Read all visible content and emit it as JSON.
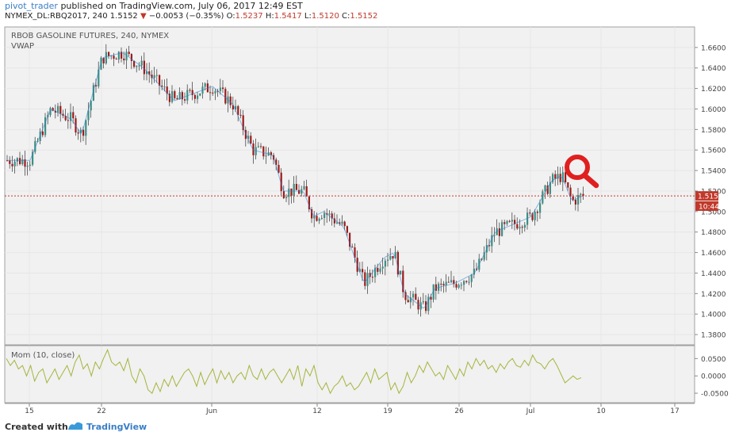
{
  "header": {
    "publisher": "pivot_trader",
    "published_text": "published on TradingView.com, July 06, 2017 12:49 EST",
    "symbol": "NYMEX_DL:RBQ2017, 240",
    "last": "1.5152",
    "change": "−0.0053 (−0.35%)",
    "o_label": "O:",
    "o_val": "1.5237",
    "h_label": "H:",
    "h_val": "1.5417",
    "l_label": "L:",
    "l_val": "1.5120",
    "c_label": "C:",
    "c_val": "1.5152"
  },
  "footer": {
    "created_with": "Created with",
    "brand": "TradingView"
  },
  "chart_data": {
    "type": "candlestick",
    "title": "RBOB GASOLINE FUTURES, 240, NYMEX",
    "indicator_label": "VWAP",
    "ylim": [
      1.37,
      1.68
    ],
    "price_ticks": [
      "1.6600",
      "1.6400",
      "1.6200",
      "1.6000",
      "1.5800",
      "1.5600",
      "1.5400",
      "1.5200",
      "1.5000",
      "1.4800",
      "1.4600",
      "1.4400",
      "1.4200",
      "1.4000",
      "1.3800"
    ],
    "x_ticks": [
      "15",
      "22",
      "Jun",
      "12",
      "19",
      "26",
      "Jul",
      "10",
      "17"
    ],
    "current_price_label": "1.5152",
    "countdown_label": "10:44",
    "colors": {
      "up": "#3c8f84",
      "down": "#9e1a1a",
      "vwap": "#2f7fd0",
      "mom": "#a6b43c",
      "price_line": "#c0392b"
    },
    "price_path": [
      [
        "15",
        1.55
      ],
      [
        "17",
        1.6
      ],
      [
        "19",
        1.59
      ],
      [
        "20",
        1.575
      ],
      [
        "22",
        1.65
      ],
      [
        "24",
        1.655
      ],
      [
        "26",
        1.64
      ],
      [
        "29",
        1.608
      ],
      [
        "30",
        1.612
      ],
      [
        "Jun 1",
        1.622
      ],
      [
        "Jun 3",
        1.605
      ],
      [
        "Jun 5",
        1.56
      ],
      [
        "Jun 7",
        1.555
      ],
      [
        "Jun 8",
        1.52
      ],
      [
        "Jun 10",
        1.52
      ],
      [
        "Jun 11",
        1.495
      ],
      [
        "Jun 12",
        1.5
      ],
      [
        "Jun 14",
        1.485
      ],
      [
        "Jun 16",
        1.43
      ],
      [
        "Jun 18",
        1.455
      ],
      [
        "Jun 19",
        1.46
      ],
      [
        "Jun 20",
        1.42
      ],
      [
        "Jun 22",
        1.405
      ],
      [
        "Jun 23",
        1.425
      ],
      [
        "Jun 25",
        1.43
      ],
      [
        "Jun 27",
        1.44
      ],
      [
        "Jun 29",
        1.48
      ],
      [
        "Jul 1",
        1.495
      ],
      [
        "Jul 3",
        1.53
      ],
      [
        "Jul 4",
        1.535
      ],
      [
        "Jul 5",
        1.51
      ],
      [
        "Jul 6",
        1.5152
      ]
    ],
    "momentum": {
      "label": "Mom (10, close)",
      "ticks": [
        "0.0500",
        "0.0000",
        "-0.0500"
      ],
      "ylim": [
        -0.075,
        0.085
      ],
      "values": [
        0.05,
        0.03,
        0.045,
        0.02,
        0.03,
        0.0,
        0.03,
        -0.015,
        0.01,
        0.02,
        -0.02,
        0.0,
        0.02,
        -0.01,
        0.01,
        0.03,
        0.0,
        0.04,
        0.06,
        0.02,
        0.035,
        0.0,
        0.04,
        0.02,
        0.05,
        0.075,
        0.04,
        0.03,
        0.04,
        0.015,
        0.05,
        0.0,
        -0.02,
        0.02,
        0.0,
        -0.04,
        -0.05,
        -0.02,
        -0.045,
        -0.01,
        -0.03,
        0.0,
        -0.03,
        -0.01,
        0.01,
        0.02,
        0.0,
        -0.03,
        0.01,
        -0.025,
        0.0,
        0.02,
        -0.02,
        0.015,
        -0.01,
        0.01,
        -0.02,
        0.0,
        0.01,
        -0.01,
        0.03,
        0.0,
        -0.01,
        0.02,
        -0.01,
        0.01,
        0.02,
        0.0,
        -0.02,
        0.0,
        0.02,
        -0.01,
        0.03,
        -0.03,
        0.02,
        0.0,
        0.03,
        -0.02,
        -0.04,
        -0.02,
        -0.05,
        -0.03,
        -0.02,
        0.0,
        -0.03,
        -0.02,
        -0.04,
        -0.03,
        -0.01,
        0.01,
        -0.02,
        0.02,
        -0.01,
        0.0,
        0.01,
        -0.04,
        -0.02,
        -0.05,
        -0.03,
        0.01,
        -0.02,
        0.0,
        0.03,
        0.01,
        0.04,
        0.02,
        0.0,
        0.01,
        -0.01,
        0.03,
        0.01,
        -0.01,
        0.02,
        0.0,
        0.04,
        0.02,
        0.05,
        0.03,
        0.045,
        0.02,
        0.03,
        0.01,
        0.035,
        0.02,
        0.04,
        0.05,
        0.03,
        0.025,
        0.045,
        0.03,
        0.06,
        0.04,
        0.035,
        0.02,
        0.04,
        0.05,
        0.03,
        0.005,
        -0.02,
        -0.01,
        0.0,
        -0.01,
        -0.005
      ]
    }
  }
}
